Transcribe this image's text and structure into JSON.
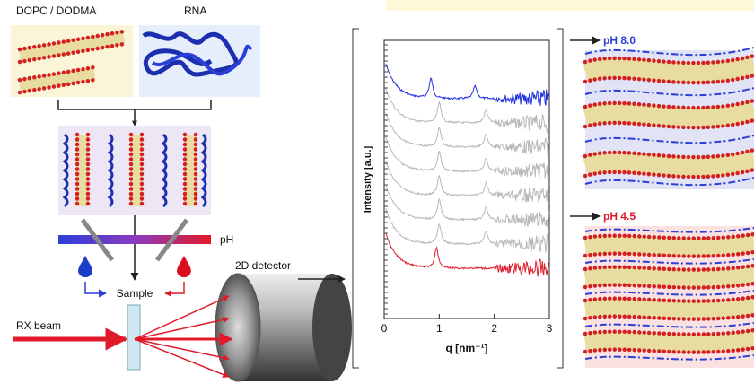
{
  "labels": {
    "lipid": "DOPC / DODMA",
    "rna": "RNA",
    "ph": "pH",
    "sample": "Sample",
    "detector": "2D detector",
    "beam": "RX beam"
  },
  "plot": {
    "y_label": "Intensity [a.u.]",
    "x_label": "q [nm⁻¹]",
    "x_ticks": [
      "0",
      "1",
      "2",
      "3"
    ]
  },
  "panels": [
    {
      "label": "pH 8.0"
    },
    {
      "label": "pH 4.5"
    }
  ]
}
